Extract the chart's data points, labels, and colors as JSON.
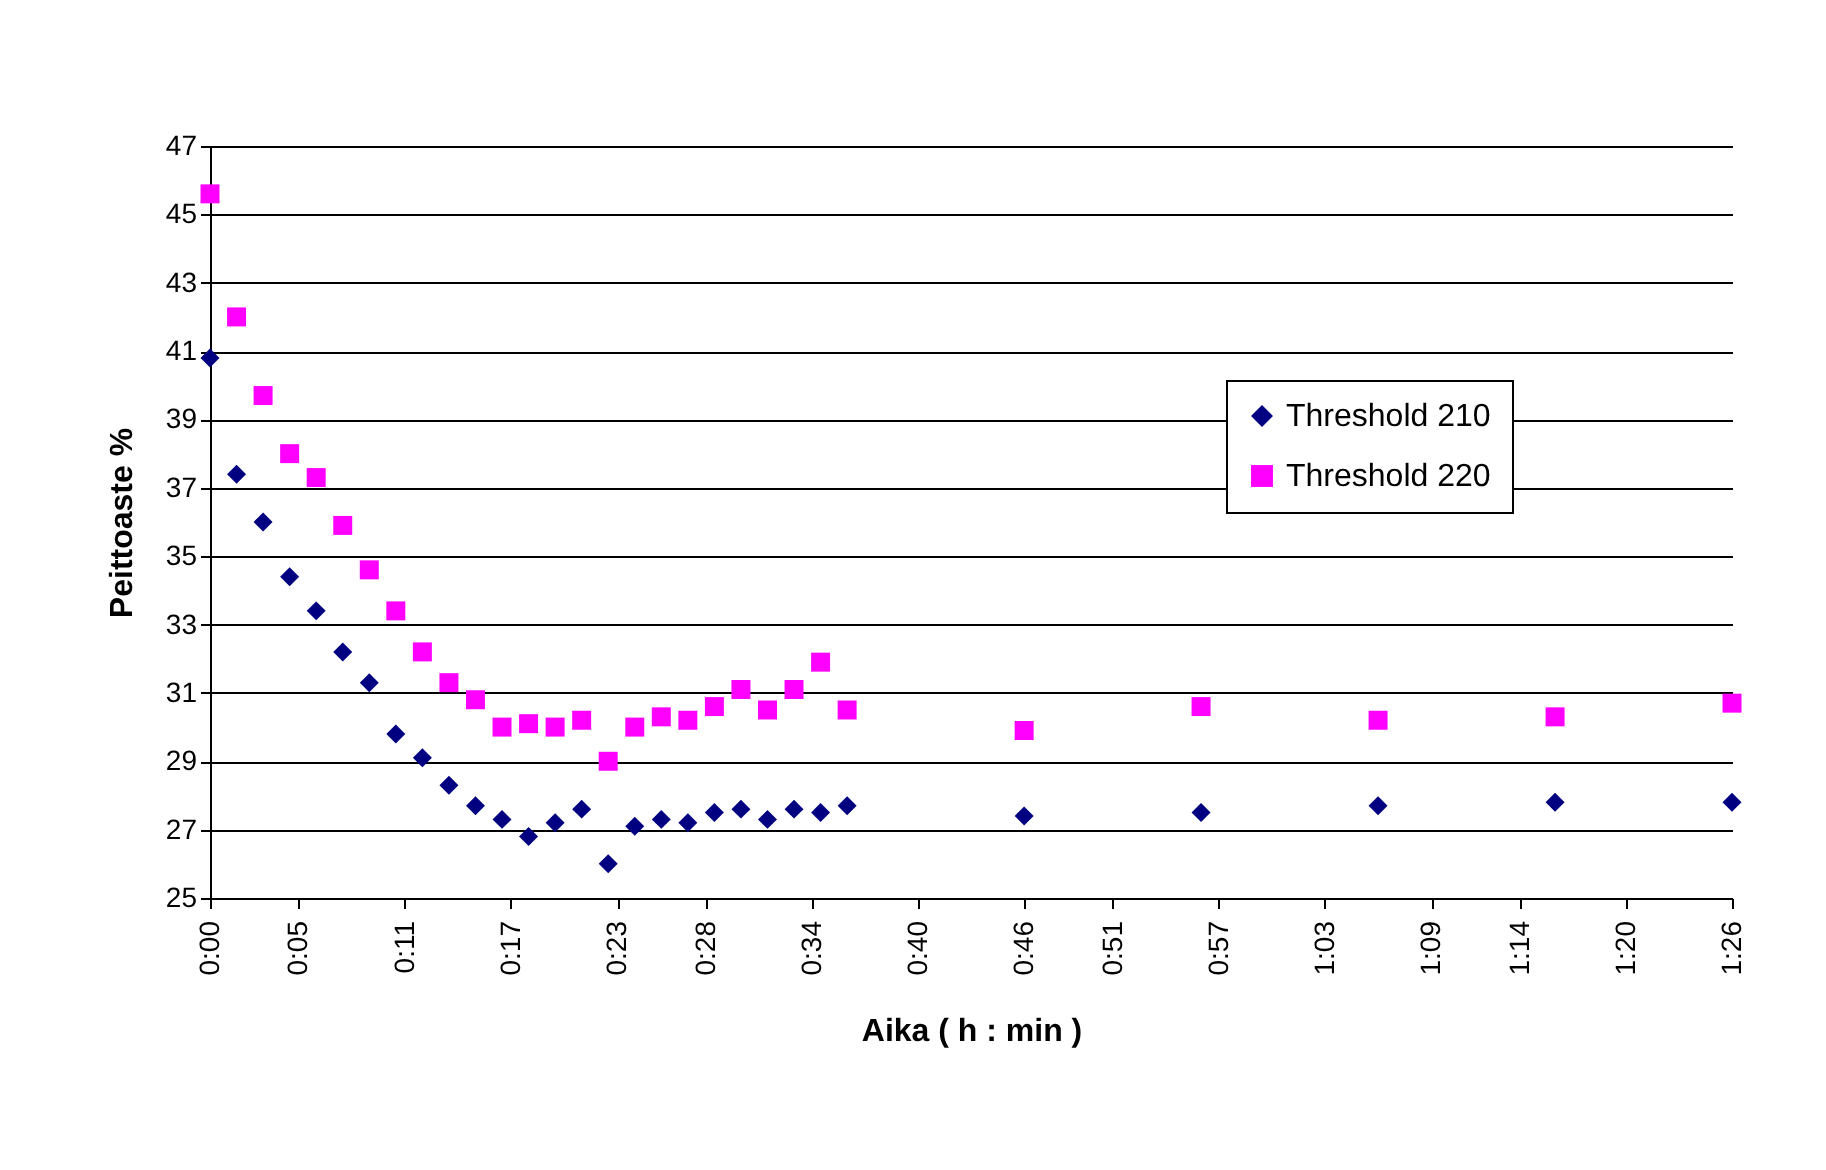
{
  "chart_data": {
    "type": "scatter",
    "xlabel": "Aika ( h : min )",
    "ylabel": "Peittoaste %",
    "x": [
      0,
      0.025,
      0.05,
      0.075,
      0.1,
      0.125,
      0.15,
      0.175,
      0.2,
      0.225,
      0.25,
      0.275,
      0.3,
      0.325,
      0.35,
      0.375,
      0.4,
      0.425,
      0.45,
      0.475,
      0.5,
      0.525,
      0.55,
      0.575,
      0.6,
      0.7667,
      0.9333,
      1.1,
      1.2667,
      1.4333
    ],
    "series": [
      {
        "name": "Threshold 210",
        "color": "#000080",
        "marker": "diamond",
        "values": [
          40.8,
          37.4,
          36.0,
          34.4,
          33.4,
          32.2,
          31.3,
          29.8,
          29.1,
          28.3,
          27.7,
          27.3,
          26.8,
          27.2,
          27.6,
          26.0,
          27.1,
          27.3,
          27.2,
          27.5,
          27.6,
          27.3,
          27.6,
          27.5,
          27.7,
          27.4,
          27.5,
          27.7,
          27.8,
          27.8
        ]
      },
      {
        "name": "Threshold 220",
        "color": "#ff00ff",
        "marker": "square",
        "values": [
          45.6,
          42.0,
          39.7,
          38.0,
          37.3,
          35.9,
          34.6,
          33.4,
          32.2,
          31.3,
          30.8,
          30.0,
          30.1,
          30.0,
          30.2,
          29.0,
          30.0,
          30.3,
          30.2,
          30.6,
          31.1,
          30.5,
          31.1,
          31.9,
          30.5,
          29.9,
          30.6,
          30.2,
          30.3,
          30.7
        ]
      }
    ],
    "xlim": [
      0,
      1.4333
    ],
    "xticks": [
      {
        "value": 0,
        "label": "0:00"
      },
      {
        "value": 0.0833,
        "label": "0:05"
      },
      {
        "value": 0.1833,
        "label": "0:11"
      },
      {
        "value": 0.2833,
        "label": "0:17"
      },
      {
        "value": 0.3833,
        "label": "0:23"
      },
      {
        "value": 0.4667,
        "label": "0:28"
      },
      {
        "value": 0.5667,
        "label": "0:34"
      },
      {
        "value": 0.6667,
        "label": "0:40"
      },
      {
        "value": 0.7667,
        "label": "0:46"
      },
      {
        "value": 0.85,
        "label": "0:51"
      },
      {
        "value": 0.95,
        "label": "0:57"
      },
      {
        "value": 1.05,
        "label": "1:03"
      },
      {
        "value": 1.15,
        "label": "1:09"
      },
      {
        "value": 1.2333,
        "label": "1:14"
      },
      {
        "value": 1.3333,
        "label": "1:20"
      },
      {
        "value": 1.4333,
        "label": "1:26"
      }
    ],
    "ylim": [
      25,
      47
    ],
    "yticks": [
      25,
      27,
      29,
      31,
      33,
      35,
      37,
      39,
      41,
      43,
      45,
      47
    ],
    "grid": "y",
    "legend": "top right"
  }
}
